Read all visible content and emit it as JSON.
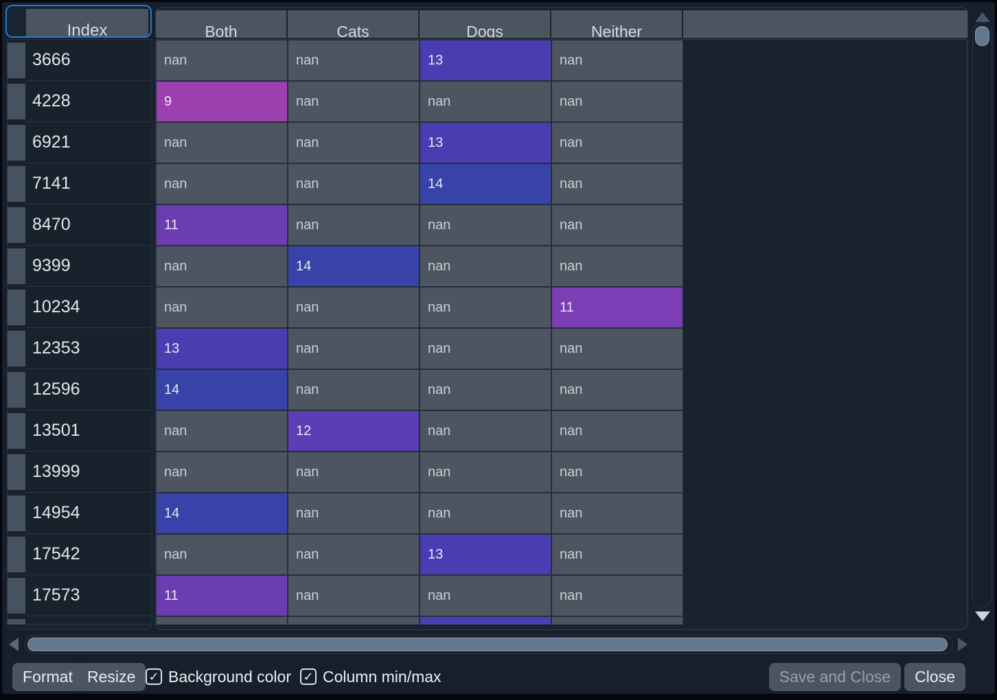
{
  "header": {
    "index_label": "Index",
    "columns": [
      "Both",
      "Cats",
      "Dogs",
      "Neither"
    ]
  },
  "table": {
    "nan_cell_bg": "#4D5560",
    "rows": [
      {
        "index": "3666",
        "cells": [
          {
            "v": "nan"
          },
          {
            "v": "nan"
          },
          {
            "v": "13",
            "bg": "#4B3DB1"
          },
          {
            "v": "nan"
          }
        ]
      },
      {
        "index": "4228",
        "cells": [
          {
            "v": "9",
            "bg": "#9C40AF"
          },
          {
            "v": "nan"
          },
          {
            "v": "nan"
          },
          {
            "v": "nan"
          }
        ]
      },
      {
        "index": "6921",
        "cells": [
          {
            "v": "nan"
          },
          {
            "v": "nan"
          },
          {
            "v": "13",
            "bg": "#4B3DB1"
          },
          {
            "v": "nan"
          }
        ]
      },
      {
        "index": "7141",
        "cells": [
          {
            "v": "nan"
          },
          {
            "v": "nan"
          },
          {
            "v": "14",
            "bg": "#3843A9"
          },
          {
            "v": "nan"
          }
        ]
      },
      {
        "index": "8470",
        "cells": [
          {
            "v": "11",
            "bg": "#6C3DB1"
          },
          {
            "v": "nan"
          },
          {
            "v": "nan"
          },
          {
            "v": "nan"
          }
        ]
      },
      {
        "index": "9399",
        "cells": [
          {
            "v": "nan"
          },
          {
            "v": "14",
            "bg": "#3843A9"
          },
          {
            "v": "nan"
          },
          {
            "v": "nan"
          }
        ]
      },
      {
        "index": "10234",
        "cells": [
          {
            "v": "nan"
          },
          {
            "v": "nan"
          },
          {
            "v": "nan"
          },
          {
            "v": "11",
            "bg": "#7C3EB4"
          }
        ]
      },
      {
        "index": "12353",
        "cells": [
          {
            "v": "13",
            "bg": "#4B3DB1"
          },
          {
            "v": "nan"
          },
          {
            "v": "nan"
          },
          {
            "v": "nan"
          }
        ]
      },
      {
        "index": "12596",
        "cells": [
          {
            "v": "14",
            "bg": "#3843A9"
          },
          {
            "v": "nan"
          },
          {
            "v": "nan"
          },
          {
            "v": "nan"
          }
        ]
      },
      {
        "index": "13501",
        "cells": [
          {
            "v": "nan"
          },
          {
            "v": "12",
            "bg": "#5D3DB4"
          },
          {
            "v": "nan"
          },
          {
            "v": "nan"
          }
        ]
      },
      {
        "index": "13999",
        "cells": [
          {
            "v": "nan"
          },
          {
            "v": "nan"
          },
          {
            "v": "nan"
          },
          {
            "v": "nan"
          }
        ]
      },
      {
        "index": "14954",
        "cells": [
          {
            "v": "14",
            "bg": "#3843A9"
          },
          {
            "v": "nan"
          },
          {
            "v": "nan"
          },
          {
            "v": "nan"
          }
        ]
      },
      {
        "index": "17542",
        "cells": [
          {
            "v": "nan"
          },
          {
            "v": "nan"
          },
          {
            "v": "13",
            "bg": "#4B3DB1"
          },
          {
            "v": "nan"
          }
        ]
      },
      {
        "index": "17573",
        "cells": [
          {
            "v": "11",
            "bg": "#6C3DB1"
          },
          {
            "v": "nan"
          },
          {
            "v": "nan"
          },
          {
            "v": "nan"
          }
        ]
      }
    ],
    "partial_row": {
      "index": "",
      "cells": [
        {
          "v": ""
        },
        {
          "v": ""
        },
        {
          "v": "",
          "bg": "#4C3EB3"
        },
        {
          "v": ""
        }
      ]
    }
  },
  "toolbar": {
    "format_label": "Format",
    "resize_label": "Resize",
    "background_color_label": "Background color",
    "background_color_checked": true,
    "column_minmax_label": "Column min/max",
    "column_minmax_checked": true,
    "save_and_close_label": "Save and Close",
    "save_and_close_enabled": false,
    "close_label": "Close"
  },
  "icons": {
    "checkmark": "✓",
    "up_arrow": "triangle-up",
    "down_arrow": "triangle-down",
    "left_arrow": "triangle-left",
    "right_arrow": "triangle-right"
  },
  "colors": {
    "focus_ring": "#2A79D2",
    "header_bg": "#4A5560",
    "nan_cell_bg": "#4D5560",
    "panel_bg": "#19232F",
    "app_bg": "#161F2B",
    "button_bg": "#4A5462",
    "scroll_thumb": "#64798F"
  }
}
